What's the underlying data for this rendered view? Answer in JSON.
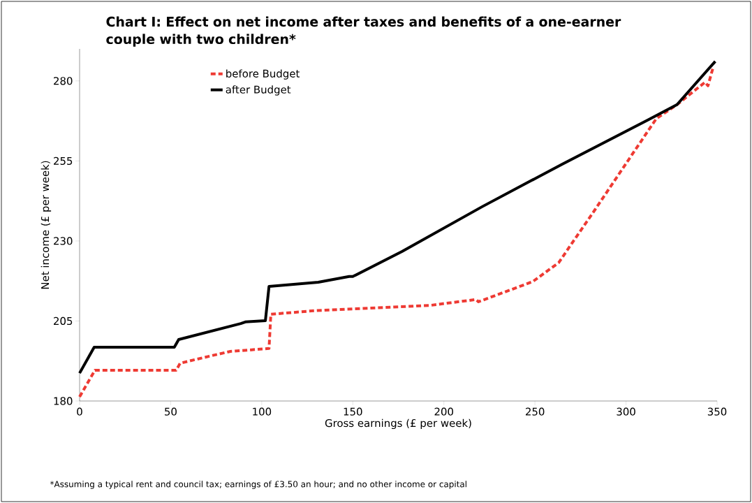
{
  "chart_data": {
    "type": "line",
    "title": "Chart I: Effect on net income after taxes and benefits of a one-earner couple with two children*",
    "xlabel": "Gross earnings (£ per week)",
    "ylabel": "Net income (£ per week)",
    "xlim": [
      0,
      350
    ],
    "ylim": [
      180,
      290
    ],
    "xticks": [
      0,
      50,
      100,
      150,
      200,
      250,
      300,
      350
    ],
    "yticks": [
      180,
      205,
      230,
      255,
      280
    ],
    "grid": false,
    "legend": "top left",
    "annotations": [
      "*Assuming a typical rent and council tax; earnings of £3.50 an hour; and no other income or capital"
    ],
    "series": [
      {
        "name": "before Budget",
        "color": "#ee3a33",
        "line_style": "dashed",
        "x": [
          0,
          8.4,
          53,
          55.2,
          71.3,
          82.8,
          104,
          105,
          128.8,
          192.8,
          217.7,
          219,
          248.8,
          263,
          283,
          316.6,
          328,
          343.4,
          345,
          348
        ],
        "values": [
          181.3,
          189.6,
          189.6,
          191.8,
          194,
          195.5,
          196.4,
          207.1,
          208.2,
          209.9,
          211.7,
          211,
          217.3,
          223.2,
          239.8,
          268.2,
          272.6,
          279.6,
          278.5,
          284.6
        ]
      },
      {
        "name": "after Budget",
        "color": "#000000",
        "line_style": "solid",
        "x": [
          0,
          8,
          52,
          54.4,
          88.5,
          91,
          102,
          104,
          131,
          148,
          150,
          177,
          221,
          265,
          312,
          328,
          349
        ],
        "values": [
          188.7,
          196.8,
          196.8,
          199.2,
          204.2,
          204.7,
          205.1,
          215.8,
          217.1,
          218.9,
          218.9,
          226.7,
          240.7,
          254,
          267.8,
          272.6,
          286.1
        ]
      }
    ]
  }
}
